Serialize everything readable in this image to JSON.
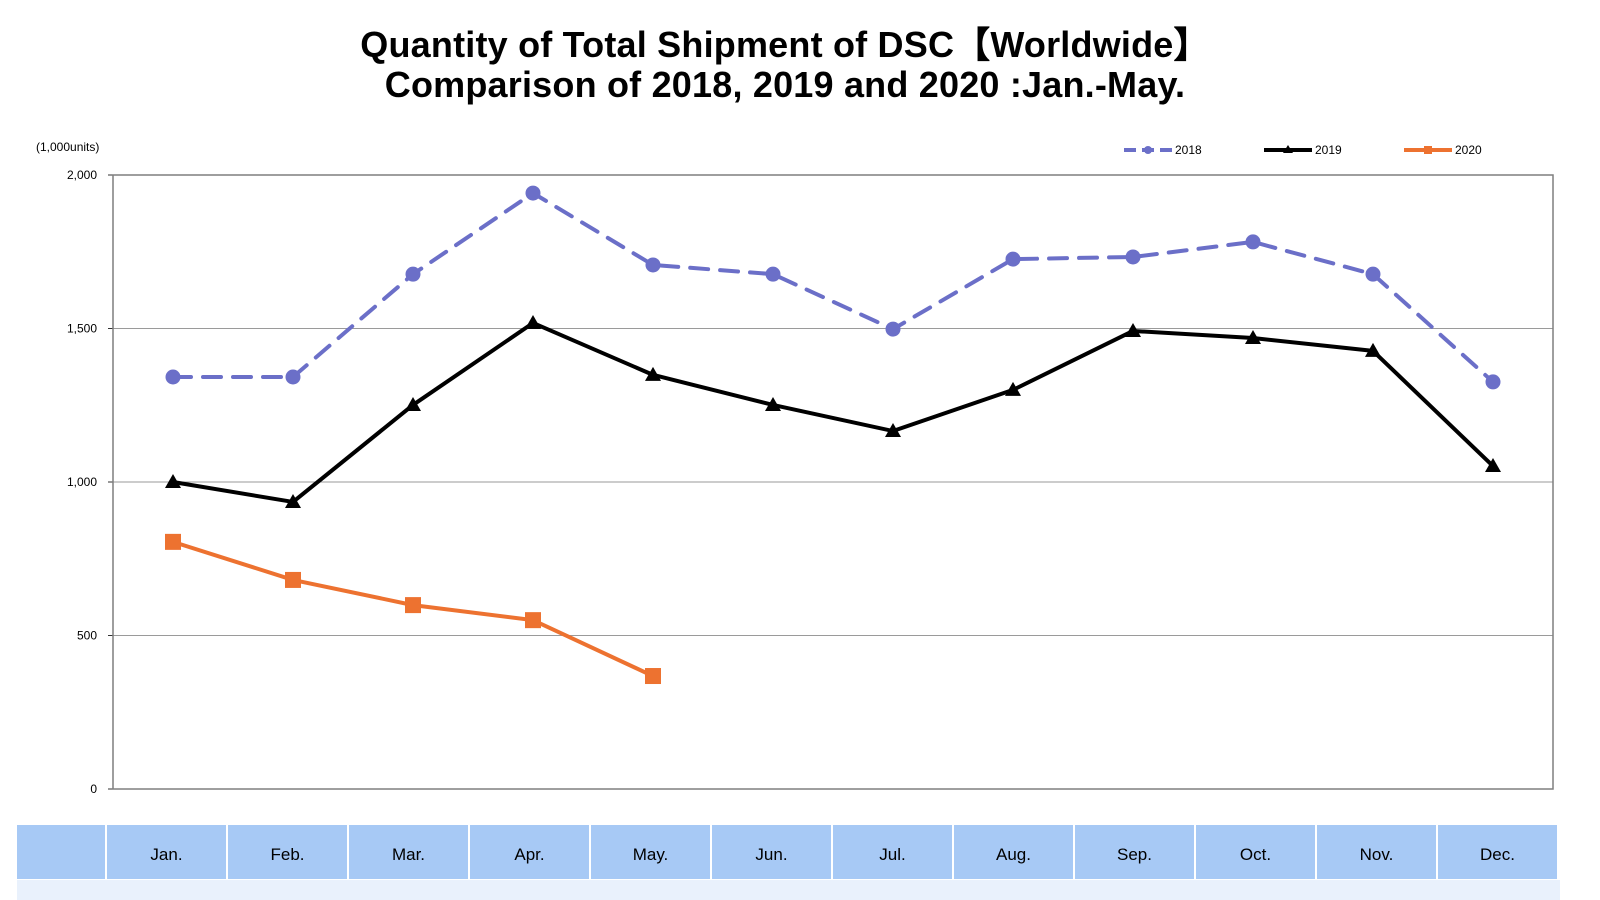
{
  "chart_data": {
    "type": "line",
    "title": "Quantity of Total Shipment of DSC【Worldwide】",
    "subtitle": "Comparison of 2018, 2019 and 2020 :Jan.-May.",
    "unit_label": "(1,000units)",
    "xlabel": "",
    "ylabel": "(1,000units)",
    "ylim": [
      0,
      2000
    ],
    "yticks": [
      0,
      500,
      1000,
      1500,
      2000
    ],
    "ytick_labels": [
      "0",
      "500",
      "1,000",
      "1,500",
      "2,000"
    ],
    "grid": true,
    "legend_position": "top-right",
    "categories": [
      "Jan.",
      "Feb.",
      "Mar.",
      "Apr.",
      "May.",
      "Jun.",
      "Jul.",
      "Aug.",
      "Sep.",
      "Oct.",
      "Nov.",
      "Dec."
    ],
    "series": [
      {
        "name": "2018",
        "color": "#6b6fc8",
        "style": "dashed",
        "marker": "circle",
        "values": [
          1342,
          1342,
          1677,
          1941,
          1707,
          1677,
          1498,
          1726,
          1733,
          1782,
          1677,
          1326
        ]
      },
      {
        "name": "2019",
        "color": "#000000",
        "style": "solid",
        "marker": "triangle",
        "values": [
          1000,
          935,
          1251,
          1518,
          1349,
          1251,
          1166,
          1300,
          1492,
          1469,
          1427,
          1052
        ]
      },
      {
        "name": "2020",
        "color": "#ed7230",
        "style": "solid",
        "marker": "square",
        "values": [
          805,
          681,
          599,
          550,
          368
        ]
      }
    ]
  },
  "table": {
    "header_blank": "",
    "months": [
      "Jan.",
      "Feb.",
      "Mar.",
      "Apr.",
      "May.",
      "Jun.",
      "Jul.",
      "Aug.",
      "Sep.",
      "Oct.",
      "Nov.",
      "Dec."
    ]
  }
}
